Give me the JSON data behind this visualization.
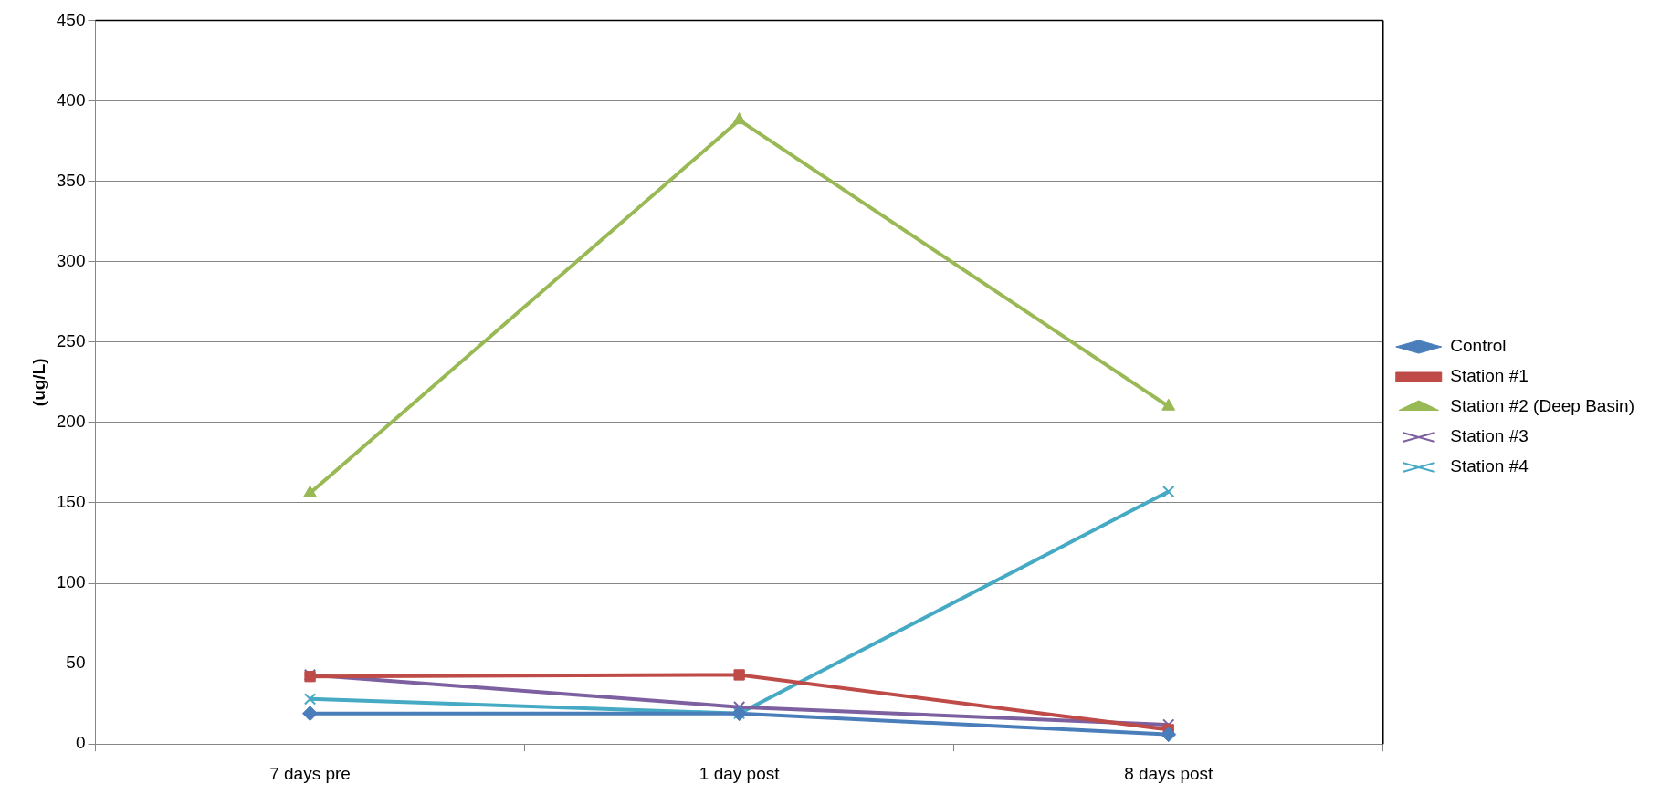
{
  "chart_data": {
    "type": "line",
    "ylabel": "(ug/L)",
    "categories": [
      "7 days pre",
      "1 day post",
      "8 days post"
    ],
    "series": [
      {
        "name": "Control",
        "color": "#4a7ebb",
        "marker": "diamond",
        "values": [
          19,
          19,
          6
        ]
      },
      {
        "name": "Station #1",
        "color": "#be4b48",
        "marker": "square",
        "values": [
          42,
          43,
          9
        ]
      },
      {
        "name": "Station #2 (Deep Basin)",
        "color": "#98b954",
        "marker": "triangle",
        "values": [
          156,
          388,
          210
        ]
      },
      {
        "name": "Station #3",
        "color": "#7d60a0",
        "marker": "cross",
        "values": [
          43,
          23,
          12
        ]
      },
      {
        "name": "Station #4",
        "color": "#46aac5",
        "marker": "cross",
        "values": [
          28,
          19,
          157
        ]
      }
    ],
    "ylim": [
      0,
      450
    ],
    "yticks": [
      0,
      50,
      100,
      150,
      200,
      250,
      300,
      350,
      400,
      450
    ],
    "grid": "y",
    "legend": "right"
  }
}
